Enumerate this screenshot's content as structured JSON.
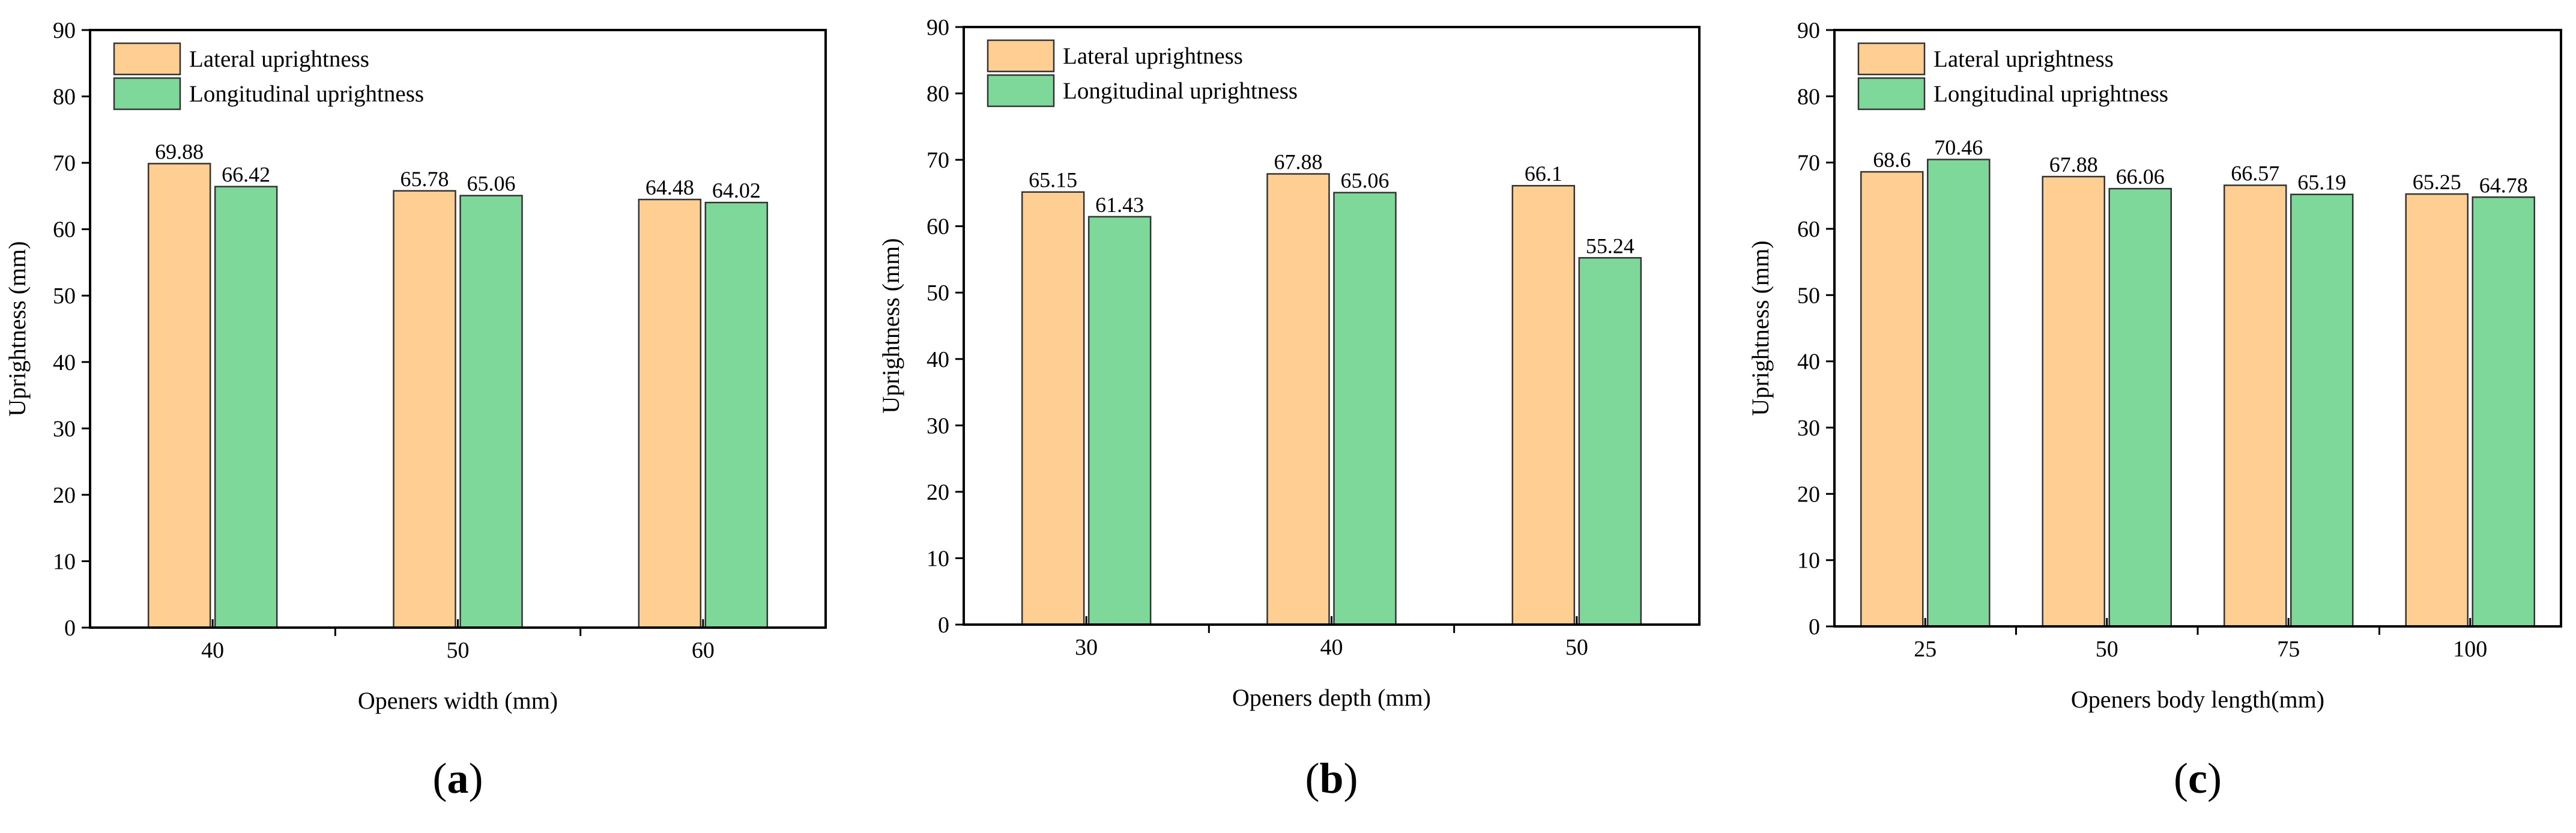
{
  "colors": {
    "lateral": "#FECE92",
    "longitudinal": "#7ED89A"
  },
  "chart_data": [
    {
      "type": "bar",
      "panel_label": "a",
      "xlabel": "Openers width (mm)",
      "ylabel": "Uprightness (mm)",
      "ylim": [
        0,
        90
      ],
      "yticks": [
        "0",
        "10",
        "20",
        "30",
        "40",
        "50",
        "60",
        "70",
        "80",
        "90"
      ],
      "categories": [
        "40",
        "50",
        "60"
      ],
      "series": [
        {
          "name": "Lateral uprightness",
          "values": [
            69.88,
            65.78,
            64.48
          ],
          "labels": [
            "69.88",
            "65.78",
            "64.48"
          ]
        },
        {
          "name": "Longitudinal uprightness",
          "values": [
            66.42,
            65.06,
            64.02
          ],
          "labels": [
            "66.42",
            "65.06",
            "64.02"
          ]
        }
      ],
      "legend": "top-left"
    },
    {
      "type": "bar",
      "panel_label": "b",
      "xlabel": "Openers depth (mm)",
      "ylabel": "Uprightness (mm)",
      "ylim": [
        0,
        90
      ],
      "yticks": [
        "0",
        "10",
        "20",
        "30",
        "40",
        "50",
        "60",
        "70",
        "80",
        "90"
      ],
      "categories": [
        "30",
        "40",
        "50"
      ],
      "series": [
        {
          "name": "Lateral uprightness",
          "values": [
            65.15,
            67.88,
            66.1
          ],
          "labels": [
            "65.15",
            "67.88",
            "66.1"
          ]
        },
        {
          "name": "Longitudinal uprightness",
          "values": [
            61.43,
            65.06,
            55.24
          ],
          "labels": [
            "61.43",
            "65.06",
            "55.24"
          ]
        }
      ],
      "legend": "top-left"
    },
    {
      "type": "bar",
      "panel_label": "c",
      "xlabel": "Openers body length(mm)",
      "ylabel": "Uprightness (mm)",
      "ylim": [
        0,
        90
      ],
      "yticks": [
        "0",
        "10",
        "20",
        "30",
        "40",
        "50",
        "60",
        "70",
        "80",
        "90"
      ],
      "categories": [
        "25",
        "50",
        "75",
        "100"
      ],
      "series": [
        {
          "name": "Lateral uprightness",
          "values": [
            68.6,
            67.88,
            66.57,
            65.25
          ],
          "labels": [
            "68.6",
            "67.88",
            "66.57",
            "65.25"
          ]
        },
        {
          "name": "Longitudinal uprightness",
          "values": [
            70.46,
            66.06,
            65.19,
            64.78
          ],
          "labels": [
            "70.46",
            "66.06",
            "65.19",
            "64.78"
          ]
        }
      ],
      "legend": "top-left"
    }
  ]
}
